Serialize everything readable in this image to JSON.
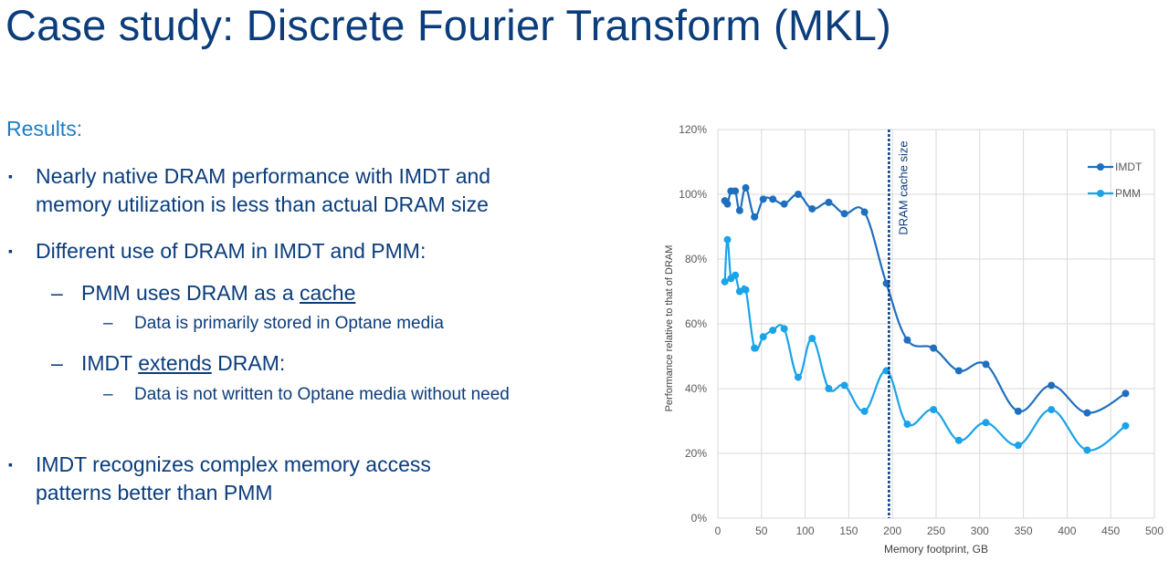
{
  "slide": {
    "title": "Case study: Discrete Fourier Transform (MKL)",
    "subheading": "Results:",
    "bullets": {
      "b1": "Nearly native DRAM performance with IMDT and memory utilization is less than actual DRAM size",
      "b2": "Different use of DRAM in IMDT and PMM:",
      "b2_sub1_pre": "PMM uses DRAM as a ",
      "b2_sub1_underlined": "cache",
      "b2_sub1_detail": "Data is primarily stored in Optane media",
      "b2_sub2_pre": "IMDT ",
      "b2_sub2_underlined": "extends",
      "b2_sub2_post": " DRAM:",
      "b2_sub2_detail": "Data is not written to Optane media without need",
      "b3": "IMDT recognizes complex memory access patterns better than PMM"
    },
    "bullet_marker": "▪",
    "dash": "–"
  },
  "chart_data": {
    "type": "line",
    "xlabel": "Memory footprint, GB",
    "ylabel": "Performance relative to that of DRAM",
    "xlim": [
      0,
      500
    ],
    "ylim": [
      0,
      120
    ],
    "x_ticks": [
      "0",
      "50",
      "100",
      "150",
      "200",
      "250",
      "300",
      "350",
      "400",
      "450",
      "500"
    ],
    "y_ticks": [
      "0%",
      "20%",
      "40%",
      "60%",
      "80%",
      "100%",
      "120%"
    ],
    "grid": true,
    "legend_position": "top-right",
    "annotation": {
      "label": "DRAM cache size",
      "x": 196
    },
    "series": [
      {
        "name": "IMDT",
        "color": "#1f6fbf",
        "x": [
          8,
          11,
          15,
          20,
          25,
          32,
          42,
          52,
          63,
          76,
          92,
          108,
          127,
          145,
          168,
          193,
          217,
          247,
          276,
          307,
          344,
          382,
          423,
          467
        ],
        "y": [
          98,
          97,
          101,
          101,
          95,
          102,
          93,
          98.5,
          98.5,
          97,
          100,
          95.5,
          97.5,
          94,
          94.5,
          72.5,
          55,
          52.5,
          45.5,
          47.5,
          33,
          41,
          32.5,
          38.5
        ]
      },
      {
        "name": "PMM",
        "color": "#1aa3e8",
        "x": [
          8,
          11,
          15,
          20,
          25,
          32,
          42,
          52,
          63,
          76,
          92,
          108,
          127,
          145,
          168,
          193,
          217,
          247,
          276,
          307,
          344,
          382,
          423,
          467
        ],
        "y": [
          73,
          86,
          74,
          75,
          70,
          70.5,
          52.5,
          56,
          58,
          58.5,
          43.5,
          55.5,
          40,
          41,
          33,
          45.5,
          29,
          33.5,
          24,
          29.5,
          22.5,
          33.5,
          21,
          28.5
        ]
      }
    ]
  }
}
